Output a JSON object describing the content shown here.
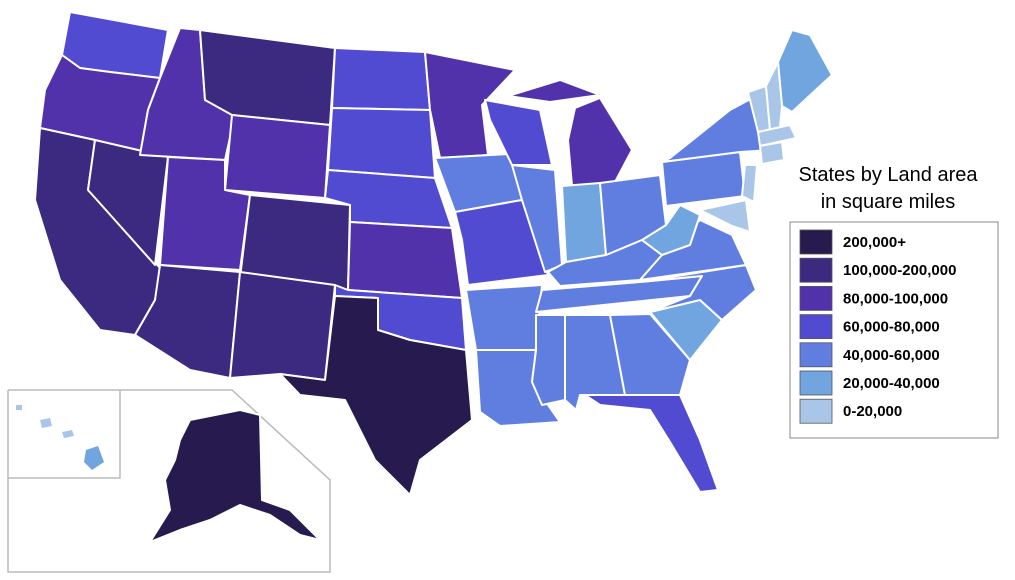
{
  "legend": {
    "title": [
      "States by Land area",
      "in square miles"
    ],
    "items": [
      {
        "label": "200,000+",
        "color": "#261a4f"
      },
      {
        "label": "100,000-200,000",
        "color": "#3b2a7f"
      },
      {
        "label": "80,000-100,000",
        "color": "#5132aa"
      },
      {
        "label": "60,000-80,000",
        "color": "#504bd0"
      },
      {
        "label": "40,000-60,000",
        "color": "#607ee0"
      },
      {
        "label": "20,000-40,000",
        "color": "#70a5e0"
      },
      {
        "label": "0-20,000",
        "color": "#a9c6e8"
      }
    ]
  }
}
